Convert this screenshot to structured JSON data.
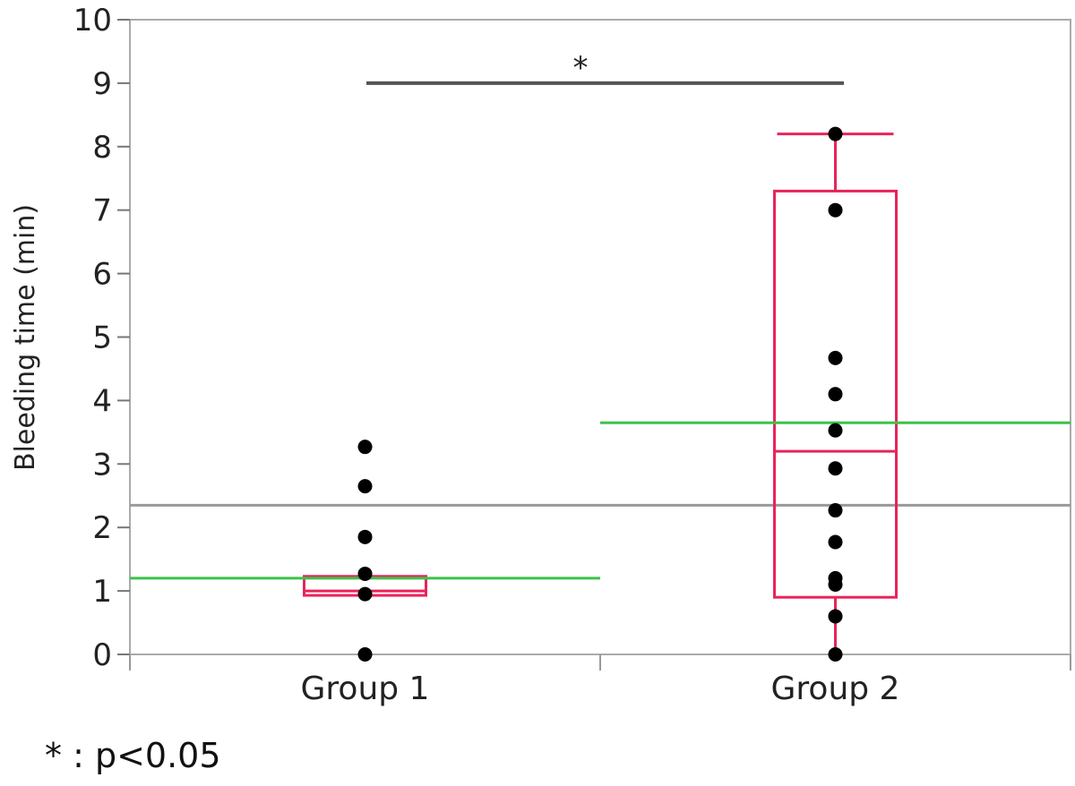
{
  "chart_data": {
    "type": "box",
    "ylabel": "Bleeding time (min)",
    "ylim": [
      0,
      10
    ],
    "yticks": [
      0,
      1,
      2,
      3,
      4,
      5,
      6,
      7,
      8,
      9,
      10
    ],
    "categories": [
      "Group 1",
      "Group 2"
    ],
    "grand_mean": 2.35,
    "groups": [
      {
        "name": "Group 1",
        "points": [
          3.27,
          2.65,
          1.85,
          1.27,
          0.95,
          0
        ],
        "box": {
          "q1": 0.93,
          "median": 1.0,
          "q3": 1.23
        },
        "whiskers": null,
        "mean": 1.2
      },
      {
        "name": "Group 2",
        "points": [
          8.2,
          7.0,
          4.67,
          4.1,
          3.53,
          2.93,
          2.27,
          1.77,
          1.2,
          1.1,
          0.6,
          0
        ],
        "box": {
          "q1": 0.9,
          "median": 3.2,
          "q3": 7.3
        },
        "whiskers": [
          0,
          8.2
        ],
        "mean": 3.65
      }
    ],
    "significance": {
      "between": [
        "Group 1",
        "Group 2"
      ],
      "y": 9.0,
      "label": "*"
    },
    "colors": {
      "box": "#e8245a",
      "mean": "#3cc24a",
      "grand_mean": "#999999",
      "bracket": "#555555",
      "points": "#000000",
      "axis": "#aaaaaa"
    }
  },
  "footnote": "* : p<0.05"
}
